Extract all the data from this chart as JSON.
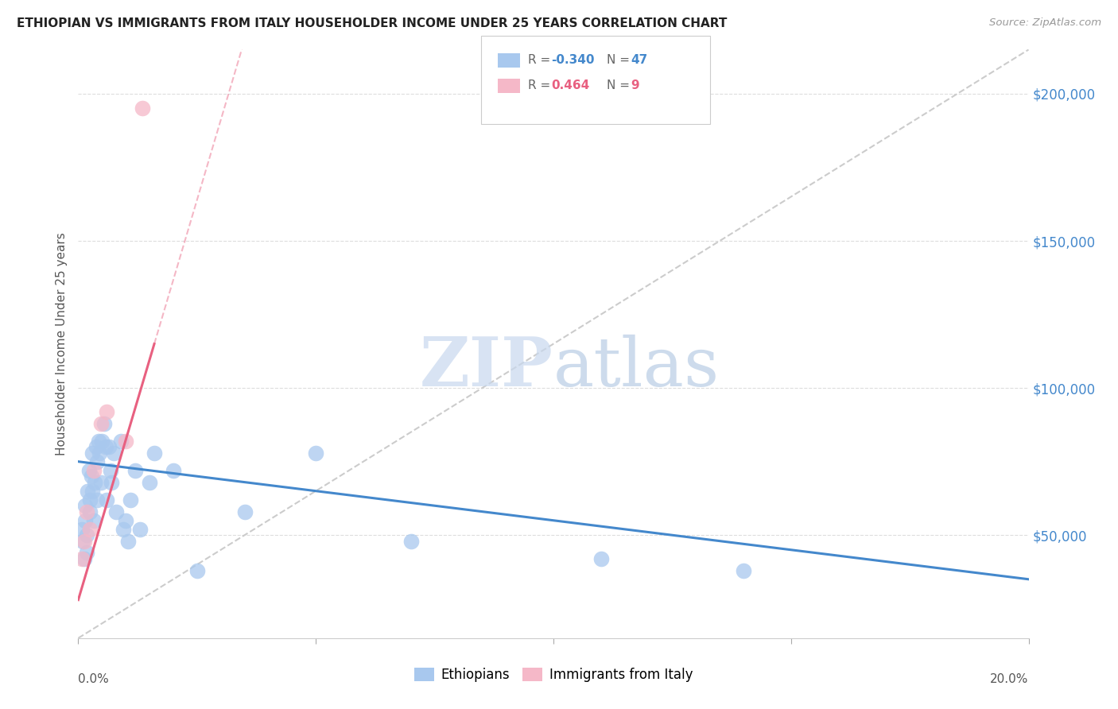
{
  "title": "ETHIOPIAN VS IMMIGRANTS FROM ITALY HOUSEHOLDER INCOME UNDER 25 YEARS CORRELATION CHART",
  "source": "Source: ZipAtlas.com",
  "ylabel": "Householder Income Under 25 years",
  "xlim": [
    0.0,
    0.2
  ],
  "ylim": [
    15000,
    215000
  ],
  "yticks": [
    50000,
    100000,
    150000,
    200000
  ],
  "ytick_labels": [
    "$50,000",
    "$100,000",
    "$150,000",
    "$200,000"
  ],
  "blue_color": "#A8C8EE",
  "pink_color": "#F5B8C8",
  "blue_line_color": "#4488CC",
  "pink_line_color": "#E86080",
  "diagonal_color": "#CCCCCC",
  "ethiopians_x": [
    0.0008,
    0.001,
    0.0012,
    0.0015,
    0.0015,
    0.0018,
    0.0018,
    0.002,
    0.0022,
    0.0025,
    0.0025,
    0.0028,
    0.003,
    0.003,
    0.0032,
    0.0035,
    0.0038,
    0.004,
    0.004,
    0.0042,
    0.0045,
    0.0048,
    0.005,
    0.0055,
    0.0058,
    0.006,
    0.0065,
    0.0068,
    0.007,
    0.0075,
    0.008,
    0.009,
    0.0095,
    0.01,
    0.0105,
    0.011,
    0.012,
    0.013,
    0.015,
    0.016,
    0.02,
    0.025,
    0.035,
    0.05,
    0.07,
    0.11,
    0.14
  ],
  "ethiopians_y": [
    52000,
    48000,
    42000,
    55000,
    60000,
    50000,
    44000,
    65000,
    72000,
    58000,
    62000,
    70000,
    78000,
    65000,
    55000,
    68000,
    80000,
    75000,
    62000,
    82000,
    78000,
    68000,
    82000,
    88000,
    80000,
    62000,
    80000,
    72000,
    68000,
    78000,
    58000,
    82000,
    52000,
    55000,
    48000,
    62000,
    72000,
    52000,
    68000,
    78000,
    72000,
    38000,
    58000,
    78000,
    48000,
    42000,
    38000
  ],
  "italy_x": [
    0.0008,
    0.0012,
    0.0018,
    0.0025,
    0.0032,
    0.0048,
    0.006,
    0.01,
    0.0135
  ],
  "italy_y": [
    42000,
    48000,
    58000,
    52000,
    72000,
    88000,
    92000,
    82000,
    195000
  ],
  "blue_trendline_x0": 0.0,
  "blue_trendline_y0": 75000,
  "blue_trendline_x1": 0.2,
  "blue_trendline_y1": 35000,
  "pink_trendline_x0": 0.0,
  "pink_trendline_y0": 28000,
  "pink_trendline_x1": 0.016,
  "pink_trendline_y1": 115000
}
